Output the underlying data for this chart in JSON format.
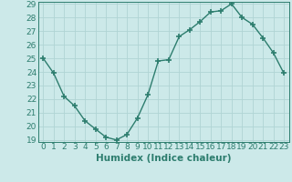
{
  "x": [
    0,
    1,
    2,
    3,
    4,
    5,
    6,
    7,
    8,
    9,
    10,
    11,
    12,
    13,
    14,
    15,
    16,
    17,
    18,
    19,
    20,
    21,
    22,
    23
  ],
  "y": [
    25.0,
    23.9,
    22.2,
    21.5,
    20.4,
    19.8,
    19.2,
    19.0,
    19.4,
    20.6,
    22.3,
    24.8,
    24.9,
    26.6,
    27.1,
    27.7,
    28.4,
    28.5,
    29.0,
    28.0,
    27.5,
    26.5,
    25.4,
    23.9
  ],
  "line_color": "#2d7d6e",
  "bg_color": "#cce9e9",
  "grid_color": "#b0d4d4",
  "xlabel": "Humidex (Indice chaleur)",
  "ylim_min": 19,
  "ylim_max": 29,
  "xlim_min": 0,
  "xlim_max": 23,
  "yticks": [
    19,
    20,
    21,
    22,
    23,
    24,
    25,
    26,
    27,
    28,
    29
  ],
  "xticks": [
    0,
    1,
    2,
    3,
    4,
    5,
    6,
    7,
    8,
    9,
    10,
    11,
    12,
    13,
    14,
    15,
    16,
    17,
    18,
    19,
    20,
    21,
    22,
    23
  ],
  "marker": "+",
  "marker_size": 4.0,
  "line_width": 1.0,
  "xlabel_fontsize": 7.5,
  "tick_fontsize": 6.5
}
